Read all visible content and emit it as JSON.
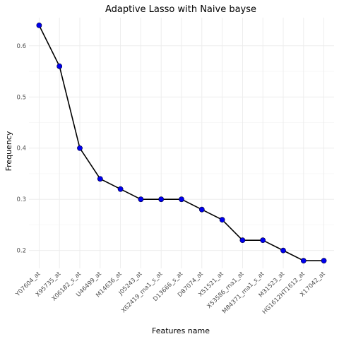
{
  "chart_data": {
    "type": "line",
    "title": "Adaptive Lasso with Naive bayse",
    "xlabel": "Features name",
    "ylabel": "Frequency",
    "categories": [
      "Y07604_at",
      "X95735_at",
      "X06182_s_at",
      "U46499_at",
      "M14636_at",
      "J05243_at",
      "X62419_rna1_s_at",
      "D13666_s_at",
      "D87074_at",
      "X51521_at",
      "X53586_rna1_at",
      "M84371_rna1_s_at",
      "M31523_at",
      "HG1612HT1612_at",
      "X17042_at"
    ],
    "values": [
      0.64,
      0.56,
      0.4,
      0.34,
      0.32,
      0.3,
      0.3,
      0.3,
      0.28,
      0.26,
      0.22,
      0.22,
      0.2,
      0.18,
      0.18
    ],
    "ylim": [
      0.165,
      0.655
    ],
    "yticks": [
      0.2,
      0.3,
      0.4,
      0.5,
      0.6
    ],
    "ytick_labels": [
      "0.2",
      "0.3",
      "0.4",
      "0.5",
      "0.6"
    ],
    "grid": true,
    "colors": {
      "line": "#000000",
      "point": "#0000ee"
    }
  }
}
